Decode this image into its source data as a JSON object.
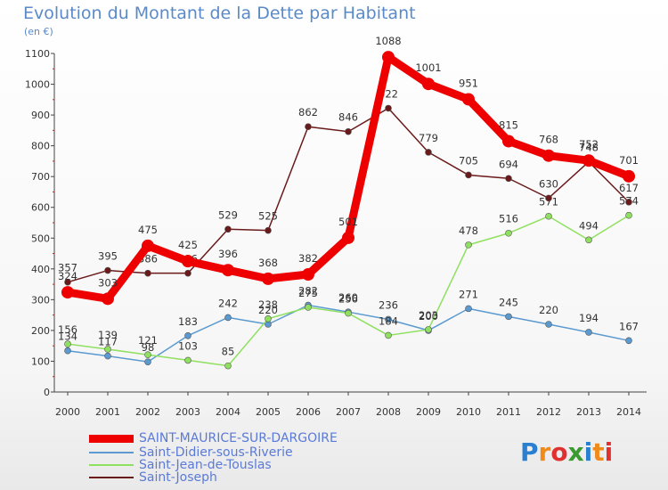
{
  "title": "Evolution du Montant de la Dette par Habitant",
  "subtitle": "(en €)",
  "logo": {
    "text": "Proxiti",
    "colors": [
      "#2a7fd0",
      "#f08a1a",
      "#e03030",
      "#3a9a30",
      "#2a7fd0",
      "#f08a1a",
      "#e03030"
    ]
  },
  "chart_data": {
    "type": "line",
    "title": "Evolution du Montant de la Dette par Habitant",
    "ylabel": "(en €)",
    "xlabel": "",
    "x": [
      2000,
      2001,
      2002,
      2003,
      2004,
      2005,
      2006,
      2007,
      2008,
      2009,
      2010,
      2011,
      2012,
      2013,
      2014
    ],
    "ylim": [
      0,
      1100
    ],
    "yticks": [
      0,
      100,
      200,
      300,
      400,
      500,
      600,
      700,
      800,
      900,
      1000,
      1100
    ],
    "grid": false,
    "legend_position": "bottom-left",
    "series": [
      {
        "name": "SAINT-MAURICE-SUR-DARGOIRE",
        "color": "#ee0000",
        "values": [
          324,
          303,
          475,
          425,
          396,
          368,
          382,
          501,
          1088,
          1001,
          951,
          815,
          768,
          752,
          701
        ]
      },
      {
        "name": "Saint-Didier-sous-Riverie",
        "color": "#5a9ad0",
        "values": [
          134,
          117,
          98,
          183,
          242,
          220,
          282,
          260,
          236,
          200,
          271,
          245,
          220,
          194,
          167
        ]
      },
      {
        "name": "Saint-Jean-de-Touslas",
        "color": "#90e060",
        "values": [
          156,
          139,
          121,
          103,
          85,
          238,
          275,
          256,
          184,
          203,
          478,
          516,
          571,
          494,
          574
        ]
      },
      {
        "name": "Saint-Joseph",
        "color": "#6a1a1a",
        "values": [
          357,
          395,
          386,
          386,
          529,
          525,
          862,
          846,
          922,
          779,
          705,
          694,
          630,
          748,
          617
        ]
      }
    ]
  }
}
